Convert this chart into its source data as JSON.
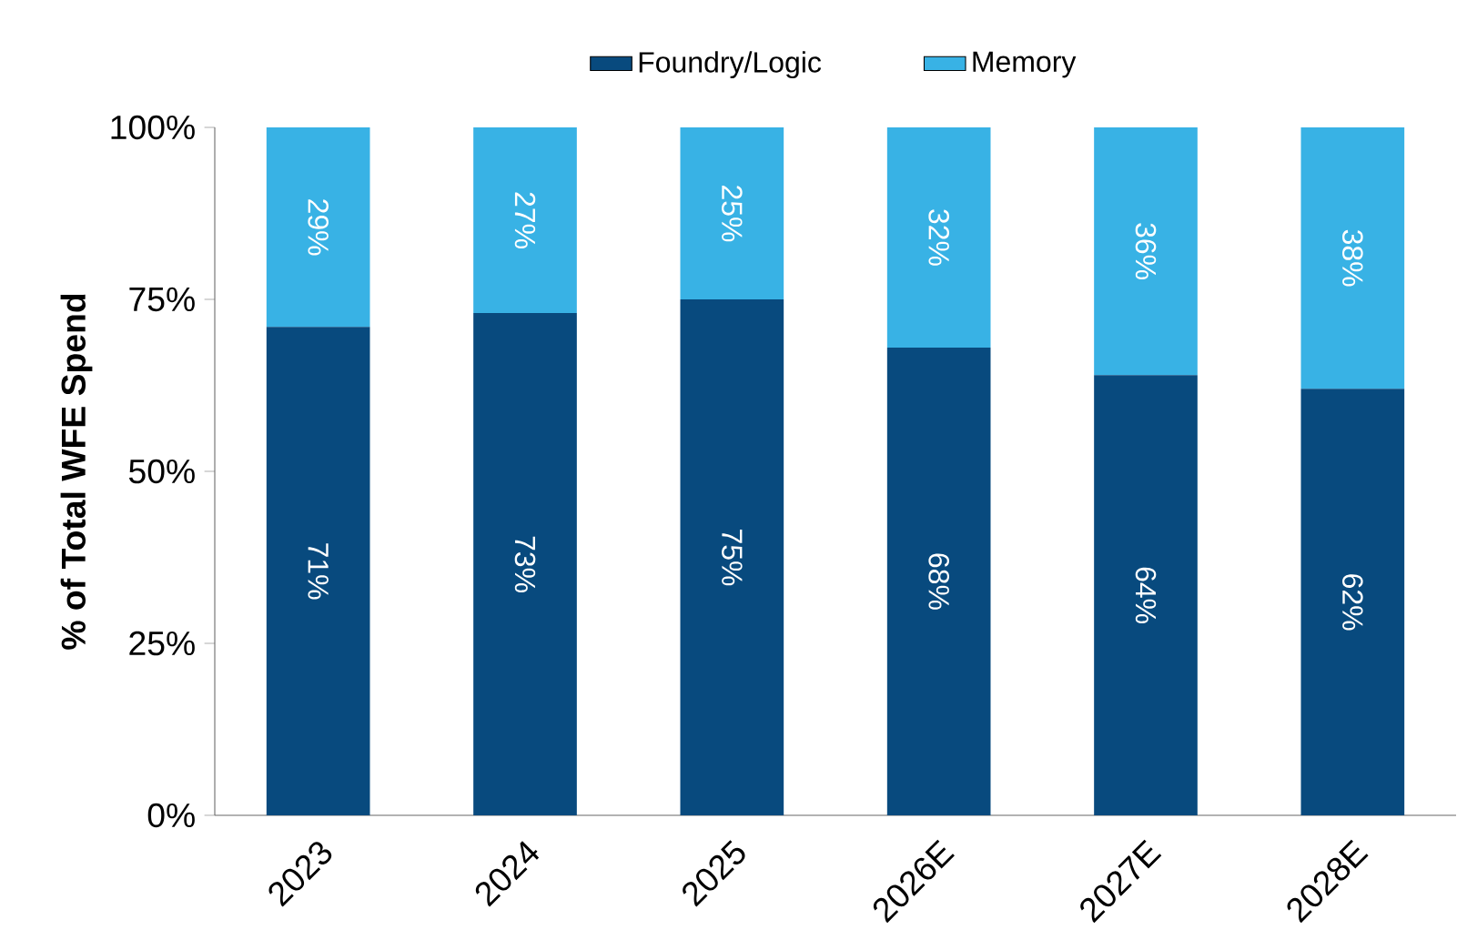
{
  "chart_data": {
    "type": "bar",
    "stacked": true,
    "ylabel": "% of Total WFE Spend",
    "categories": [
      "2023",
      "2024",
      "2025",
      "2026E",
      "2027E",
      "2028E"
    ],
    "series": [
      {
        "name": "Foundry/Logic",
        "color": "#084a7e",
        "values": [
          71,
          73,
          75,
          68,
          64,
          62
        ],
        "value_labels": [
          "71%",
          "73%",
          "75%",
          "68%",
          "64%",
          "62%"
        ]
      },
      {
        "name": "Memory",
        "color": "#38b2e5",
        "values": [
          29,
          27,
          25,
          32,
          36,
          38
        ],
        "value_labels": [
          "29%",
          "27%",
          "25%",
          "32%",
          "36%",
          "38%"
        ]
      }
    ],
    "ylim": [
      0,
      100
    ],
    "yticks": [
      {
        "value": 0,
        "label": "0%"
      },
      {
        "value": 25,
        "label": "25%"
      },
      {
        "value": 50,
        "label": "50%"
      },
      {
        "value": 75,
        "label": "75%"
      },
      {
        "value": 100,
        "label": "100%"
      }
    ],
    "legend": "top",
    "grid": false
  }
}
